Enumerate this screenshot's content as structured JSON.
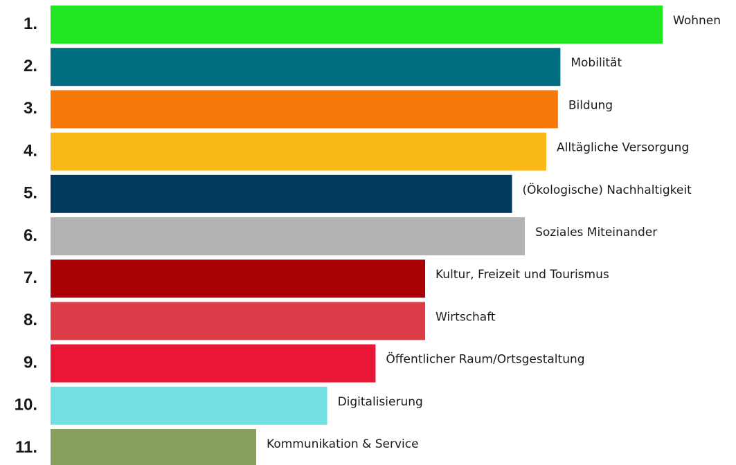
{
  "chart_data": {
    "type": "bar",
    "orientation": "horizontal",
    "title": "",
    "xlabel": "",
    "ylabel": "",
    "grid": false,
    "legend": "none",
    "xlim": [
      0,
      100
    ],
    "ranks": [
      "1.",
      "2.",
      "3.",
      "4.",
      "5.",
      "6.",
      "7.",
      "8.",
      "9.",
      "10.",
      "11."
    ],
    "categories": [
      "Wohnen",
      "Mobilität",
      "Bildung",
      "Alltägliche Versorgung",
      "(Ökologische) Nachhaltigkeit",
      "Soziales Miteinander",
      "Kultur, Freizeit und Tourismus",
      "Wirtschaft",
      "Öffentlicher Raum/Ortsgestaltung",
      "Digitalisierung",
      "Kommunikation & Service"
    ],
    "values": [
      100,
      83.3,
      82.9,
      81.0,
      75.4,
      77.5,
      61.2,
      61.2,
      53.1,
      45.2,
      33.6
    ],
    "colors": [
      "#22e622",
      "#006e80",
      "#f7790a",
      "#fbb918",
      "#003a5c",
      "#b3b3b3",
      "#a80005",
      "#dc3c48",
      "#ea1636",
      "#72e0e3",
      "#88a05e"
    ]
  }
}
